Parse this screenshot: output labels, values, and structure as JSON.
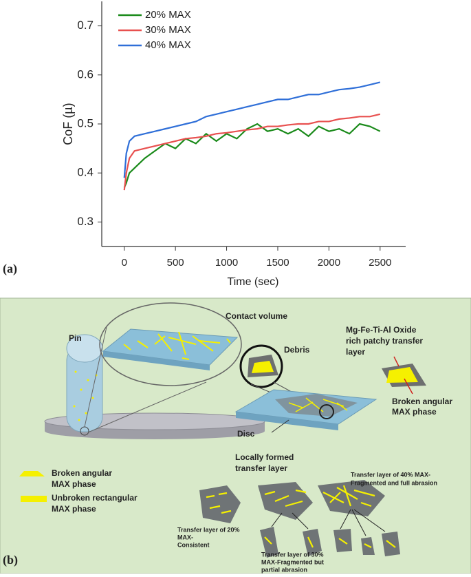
{
  "panel_a_label": "(a)",
  "chart_data": {
    "type": "line",
    "x_label": "Time (sec)",
    "y_label": "CoF (µ)",
    "x": [
      0,
      20,
      50,
      100,
      200,
      300,
      400,
      500,
      600,
      700,
      800,
      900,
      1000,
      1100,
      1200,
      1300,
      1400,
      1500,
      1600,
      1700,
      1800,
      1900,
      2000,
      2100,
      2200,
      2300,
      2400,
      2500
    ],
    "series": [
      {
        "name": "20% MAX",
        "color": "#1a8a1a",
        "values": [
          0.37,
          0.38,
          0.4,
          0.41,
          0.43,
          0.445,
          0.46,
          0.45,
          0.47,
          0.46,
          0.48,
          0.465,
          0.48,
          0.47,
          0.49,
          0.5,
          0.485,
          0.49,
          0.48,
          0.49,
          0.475,
          0.495,
          0.485,
          0.49,
          0.48,
          0.5,
          0.495,
          0.485
        ]
      },
      {
        "name": "30% MAX",
        "color": "#e8504f",
        "values": [
          0.365,
          0.4,
          0.43,
          0.445,
          0.45,
          0.455,
          0.46,
          0.465,
          0.47,
          0.472,
          0.475,
          0.48,
          0.482,
          0.485,
          0.488,
          0.49,
          0.495,
          0.495,
          0.498,
          0.5,
          0.5,
          0.505,
          0.505,
          0.51,
          0.512,
          0.515,
          0.515,
          0.52
        ]
      },
      {
        "name": "40% MAX",
        "color": "#2f6fd8",
        "values": [
          0.39,
          0.44,
          0.465,
          0.475,
          0.48,
          0.485,
          0.49,
          0.495,
          0.5,
          0.505,
          0.515,
          0.52,
          0.525,
          0.53,
          0.535,
          0.54,
          0.545,
          0.55,
          0.55,
          0.555,
          0.56,
          0.56,
          0.565,
          0.57,
          0.572,
          0.575,
          0.58,
          0.585
        ]
      }
    ],
    "xlim": [
      -220,
      2750
    ],
    "ylim": [
      0.25,
      0.75
    ],
    "xticks": [
      0,
      500,
      1000,
      1500,
      2000,
      2500
    ],
    "yticks": [
      0.3,
      0.4,
      0.5,
      0.6,
      0.7
    ],
    "legend": "upper left"
  },
  "diagram": {
    "panel_label": "(b)",
    "contact_volume": "Contact volume",
    "pin": "Pin",
    "debris": "Debris",
    "disc": "Disc",
    "oxide_label": [
      "Mg-Fe-Ti-Al Oxide",
      "rich patchy transfer",
      "layer"
    ],
    "broken_label": [
      "Broken angular",
      "MAX phase"
    ],
    "transfer_label": [
      "Locally formed",
      "transfer layer"
    ],
    "legend_broken": [
      "Broken angular",
      "MAX phase"
    ],
    "legend_unbroken": [
      "Unbroken rectangular",
      "MAX phase"
    ],
    "layer_40": [
      "Transfer layer of 40% MAX-",
      "Fragmented and full abrasion"
    ],
    "layer_20": [
      "Transfer layer of 20%",
      "MAX-",
      "Consistent"
    ],
    "layer_30": [
      "Transfer layer of 30%",
      "MAX-Fragmented but",
      "partial abrasion"
    ]
  }
}
